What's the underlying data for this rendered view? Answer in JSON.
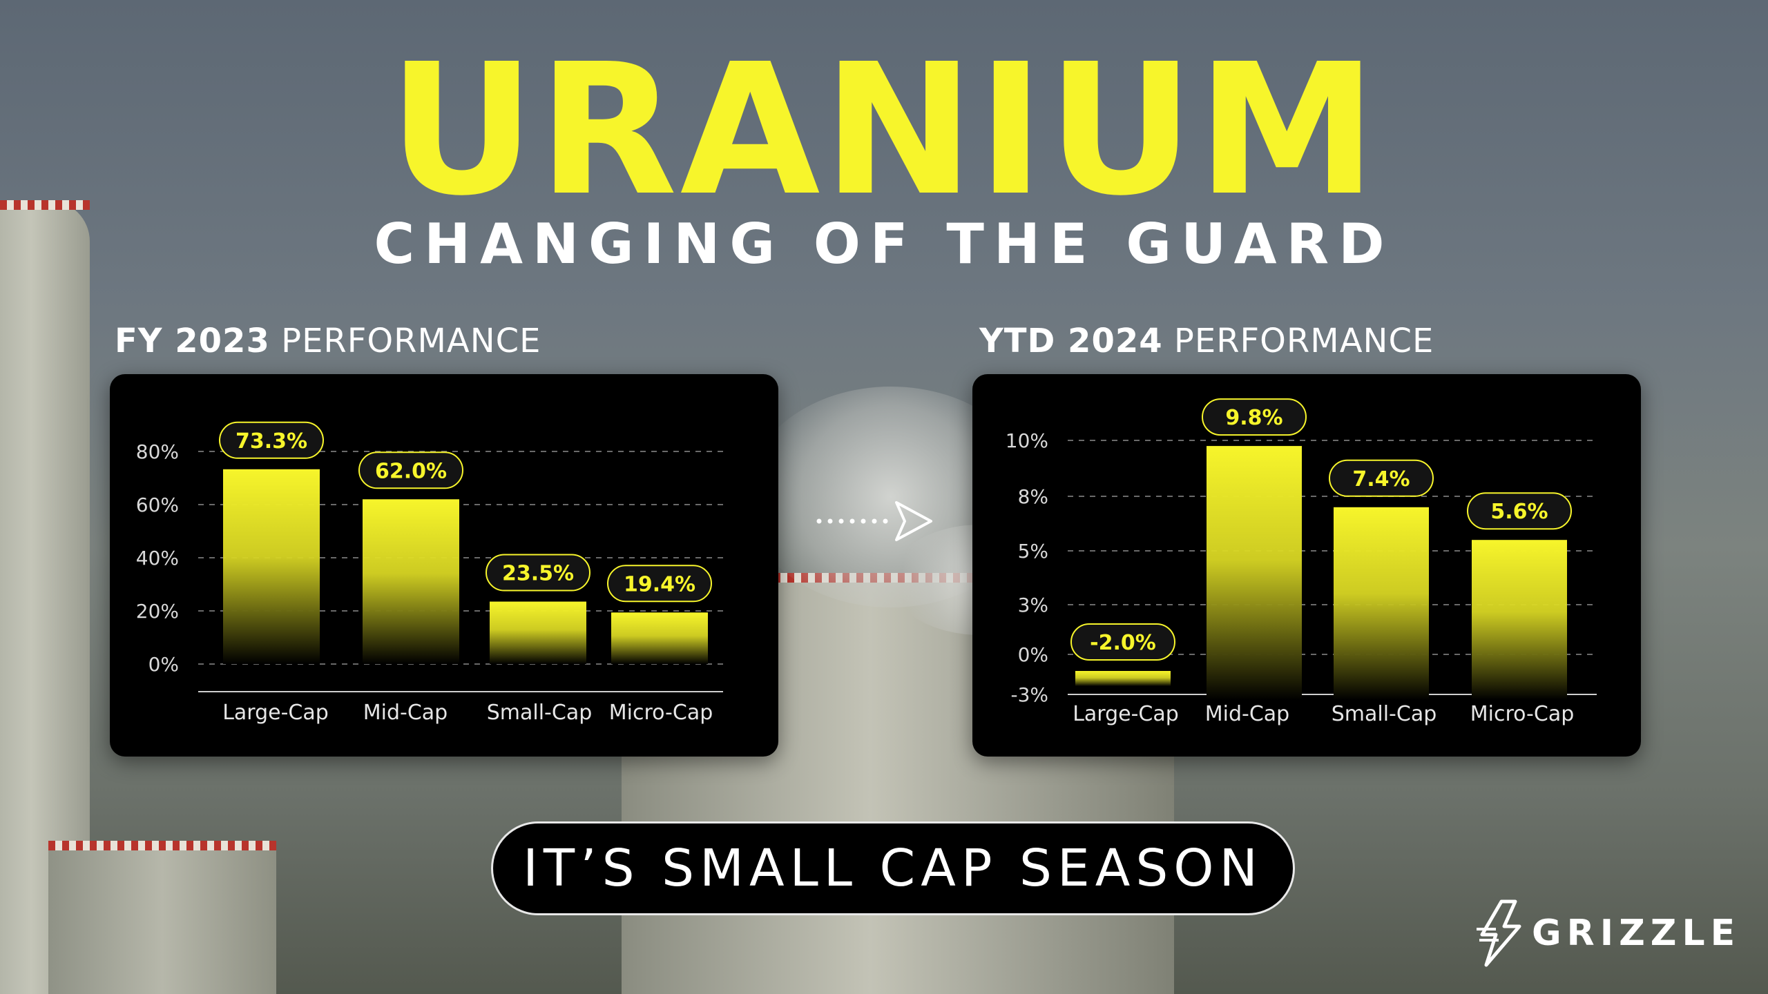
{
  "header": {
    "title": "URANIUM",
    "subtitle": "CHANGING OF THE GUARD"
  },
  "left_section": {
    "bold": "FY 2023",
    "rest": " PERFORMANCE"
  },
  "right_section": {
    "bold": "YTD 2024",
    "rest": " PERFORMANCE"
  },
  "cta": "IT’S SMALL CAP SEASON",
  "logo": {
    "text": "GRIZZLE",
    "icon": "grizzle-logo-icon"
  },
  "colors": {
    "accent": "#f7f52b",
    "panel": "#000000",
    "text": "#ffffff"
  },
  "chart_data": [
    {
      "type": "bar",
      "categories": [
        "Large-Cap",
        "Mid-Cap",
        "Small-Cap",
        "Micro-Cap"
      ],
      "values": [
        73.3,
        62.0,
        23.5,
        19.4
      ],
      "labels": [
        "73.3%",
        "62.0%",
        "23.5%",
        "19.4%"
      ],
      "ytick_labels": [
        "80%",
        "60%",
        "40%",
        "20%",
        "0%"
      ],
      "ylim": [
        0,
        80
      ],
      "grid": true
    },
    {
      "type": "bar",
      "categories": [
        "Large-Cap",
        "Mid-Cap",
        "Small-Cap",
        "Micro-Cap"
      ],
      "values": [
        -2.0,
        9.8,
        7.4,
        5.6
      ],
      "labels": [
        "-2.0%",
        "9.8%",
        "7.4%",
        "5.6%"
      ],
      "ytick_labels": [
        "10%",
        "8%",
        "5%",
        "3%",
        "0%",
        "-3%"
      ],
      "ylim": [
        -3,
        10
      ],
      "grid": true
    }
  ]
}
